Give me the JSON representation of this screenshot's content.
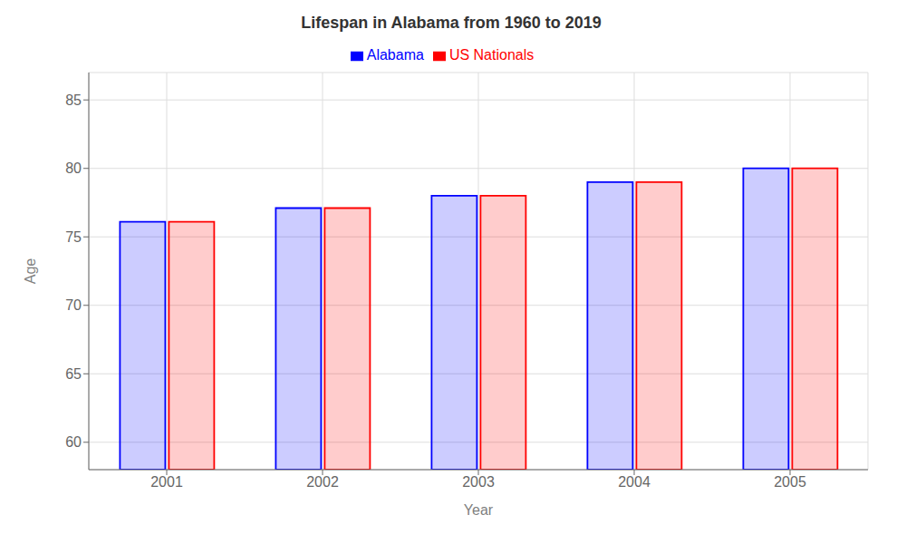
{
  "chart_data": {
    "type": "bar",
    "title": "Lifespan in Alabama from 1960 to 2019",
    "xlabel": "Year",
    "ylabel": "Age",
    "categories": [
      "2001",
      "2002",
      "2003",
      "2004",
      "2005"
    ],
    "series": [
      {
        "name": "Alabama",
        "color": "#0000ff",
        "values": [
          76.1,
          77.1,
          78.0,
          79.0,
          80.0
        ]
      },
      {
        "name": "US Nationals",
        "color": "#ff0000",
        "values": [
          76.1,
          77.1,
          78.0,
          79.0,
          80.0
        ]
      }
    ],
    "ylim": [
      58,
      87
    ],
    "yticks": [
      60,
      65,
      70,
      75,
      80,
      85
    ],
    "grid": true,
    "legend": "top"
  }
}
